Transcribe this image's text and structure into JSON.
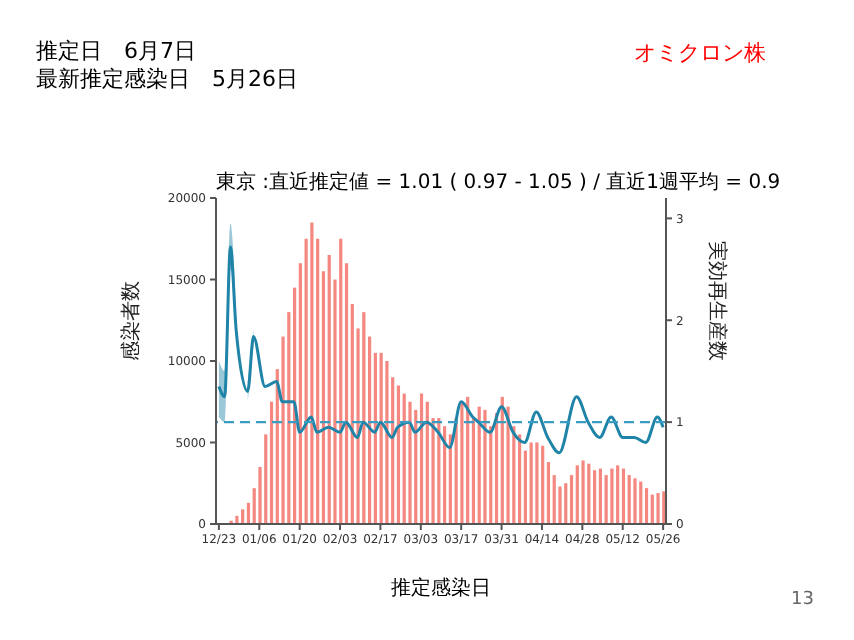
{
  "chart_data": {
    "type": "bar",
    "title": "推定日　6月7日",
    "subtitle": "最新推定感染日　5月26日",
    "annotations": [
      "オミクロン株",
      "東京 :直近推定値 = 1.01 ( 0.97 - 1.05 ) / 直近1週平均 = 0.9",
      "13"
    ],
    "xlabel": "推定感染日",
    "ylabel": "感染者数",
    "y2label": "実効再生産数",
    "categories": [
      "12/23",
      null,
      null,
      null,
      null,
      null,
      null,
      "01/06",
      null,
      null,
      null,
      null,
      null,
      null,
      "01/20",
      null,
      null,
      null,
      null,
      null,
      null,
      "02/03",
      null,
      null,
      null,
      null,
      null,
      null,
      "02/17",
      null,
      null,
      null,
      null,
      null,
      null,
      "03/03",
      null,
      null,
      null,
      null,
      null,
      null,
      "03/17",
      null,
      null,
      null,
      null,
      null,
      null,
      "03/31",
      null,
      null,
      null,
      null,
      null,
      null,
      "04/14",
      null,
      null,
      null,
      null,
      null,
      null,
      "04/28",
      null,
      null,
      null,
      null,
      null,
      null,
      "05/12",
      null,
      null,
      null,
      null,
      null,
      null,
      "05/26"
    ],
    "ylim": [
      0,
      20000
    ],
    "yticks": [
      0,
      5000,
      10000,
      15000,
      20000
    ],
    "y2lim": [
      0,
      3.2
    ],
    "y2ticks": [
      0,
      1,
      2,
      3
    ],
    "series": [
      {
        "color": "#f4877f",
        "values": [
          0,
          0,
          200,
          500,
          900,
          1300,
          2200,
          3500,
          5500,
          7500,
          9500,
          11500,
          13000,
          14500,
          16000,
          17500,
          18500,
          17500,
          15500,
          16500,
          15000,
          17500,
          16000,
          13500,
          12000,
          13000,
          11500,
          10500,
          10500,
          10000,
          9000,
          8500,
          8000,
          7500,
          7000,
          8000,
          7500,
          6500,
          6500,
          6000,
          5500,
          6500,
          7500,
          7800,
          6500,
          7200,
          7000,
          6000,
          6800,
          7800,
          7200,
          6000,
          5500,
          4500,
          5000,
          5000,
          4800,
          3800,
          3000,
          2300,
          2500,
          3000,
          3600,
          3900,
          3700,
          3300,
          3400,
          3000,
          3400,
          3600,
          3400,
          3000,
          2800,
          2600,
          2200,
          1800,
          1900,
          2000
        ]
      },
      {
        "type": "line",
        "axis": "y2",
        "color": "#1f84a8",
        "line_style": "solid",
        "marker": "none",
        "values": [
          1.35,
          1.25,
          2.72,
          1.9,
          null,
          1.3,
          1.84,
          null,
          1.35,
          null,
          1.4,
          1.2,
          null,
          1.2,
          0.9,
          null,
          1.05,
          0.9,
          null,
          0.95,
          null,
          0.9,
          1.0,
          null,
          0.85,
          1.0,
          null,
          0.9,
          1.0,
          null,
          0.85,
          0.95,
          null,
          1.0,
          0.9,
          null,
          1.0,
          null,
          0.9,
          null,
          0.75,
          null,
          1.2,
          null,
          1.05,
          1.0,
          null,
          0.9,
          null,
          1.15,
          null,
          0.9,
          null,
          0.8,
          null,
          1.1,
          null,
          0.85,
          null,
          0.7,
          null,
          null,
          1.25,
          null,
          1.0,
          null,
          0.85,
          null,
          1.05,
          null,
          0.85,
          null,
          0.85,
          null,
          0.8,
          null,
          1.05,
          0.95
        ],
        "lower": [
          1.05,
          1.0,
          2.5,
          1.75,
          null,
          1.2,
          1.75,
          null,
          null,
          null,
          null,
          null,
          null,
          null,
          null,
          null,
          null,
          null,
          null,
          null,
          null,
          null,
          null,
          null,
          null,
          null,
          null,
          null,
          null,
          null,
          null,
          null,
          null,
          null,
          null,
          null,
          null,
          null,
          null,
          null,
          null,
          null,
          null,
          null,
          null,
          null,
          null,
          null,
          null,
          null,
          null,
          null,
          null,
          null,
          null,
          null,
          null,
          null,
          null,
          null,
          null,
          null,
          null,
          null,
          null,
          null,
          null,
          null,
          null,
          null,
          null,
          null,
          null,
          null,
          null,
          null,
          null,
          null
        ],
        "upper": [
          1.6,
          1.5,
          2.95,
          2.05,
          null,
          1.4,
          1.92,
          null,
          null,
          null,
          null,
          null,
          null,
          null,
          null,
          null,
          null,
          null,
          null,
          null,
          null,
          null,
          null,
          null,
          null,
          null,
          null,
          null,
          null,
          null,
          null,
          null,
          null,
          null,
          null,
          null,
          null,
          null,
          null,
          null,
          null,
          null,
          null,
          null,
          null,
          null,
          null,
          null,
          null,
          null,
          null,
          null,
          null,
          null,
          null,
          null,
          null,
          null,
          null,
          null,
          null,
          null,
          null,
          null,
          null,
          null,
          null,
          null,
          null,
          null,
          null,
          null,
          null,
          null,
          null,
          null,
          null,
          null
        ]
      }
    ],
    "ref_lines": [
      {
        "axis": "y2",
        "value": 1,
        "color": "#3a9cc0",
        "line_style": "dashed"
      }
    ]
  }
}
